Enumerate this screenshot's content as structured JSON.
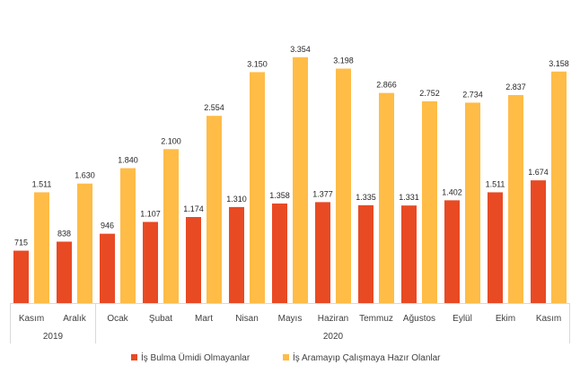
{
  "chart_data": {
    "type": "bar",
    "categories": [
      "Kasım",
      "Aralık",
      "Ocak",
      "Şubat",
      "Mart",
      "Nisan",
      "Mayıs",
      "Haziran",
      "Temmuz",
      "Ağustos",
      "Eylül",
      "Ekim",
      "Kasım"
    ],
    "category_years": [
      "2019",
      "2019",
      "2020",
      "2020",
      "2020",
      "2020",
      "2020",
      "2020",
      "2020",
      "2020",
      "2020",
      "2020",
      "2020"
    ],
    "year_groups": [
      {
        "label": "2019",
        "count": 2
      },
      {
        "label": "2020",
        "count": 11
      }
    ],
    "series": [
      {
        "name": "İş Bulma Ümidi Olmayanlar",
        "color": "#E84A24",
        "values": [
          715,
          838,
          946,
          1107,
          1174,
          1310,
          1358,
          1377,
          1335,
          1331,
          1402,
          1511,
          1674
        ],
        "labels": [
          "715",
          "838",
          "946",
          "1.107",
          "1.174",
          "1.310",
          "1.358",
          "1.377",
          "1.335",
          "1.331",
          "1.402",
          "1.511",
          "1.674"
        ]
      },
      {
        "name": "İş Aramayıp Çalışmaya Hazır Olanlar",
        "color": "#FFBC47",
        "values": [
          1511,
          1630,
          1840,
          2100,
          2554,
          3150,
          3354,
          3198,
          2866,
          2752,
          2734,
          2837,
          3158
        ],
        "labels": [
          "1.511",
          "1.630",
          "1.840",
          "2.100",
          "2.554",
          "3.150",
          "3.354",
          "3.198",
          "2.866",
          "2.752",
          "2.734",
          "2.837",
          "3.158"
        ]
      }
    ],
    "ylim": [
      0,
      3400
    ],
    "grid": false,
    "legend_position": "bottom",
    "title": "",
    "xlabel": "",
    "ylabel": ""
  }
}
